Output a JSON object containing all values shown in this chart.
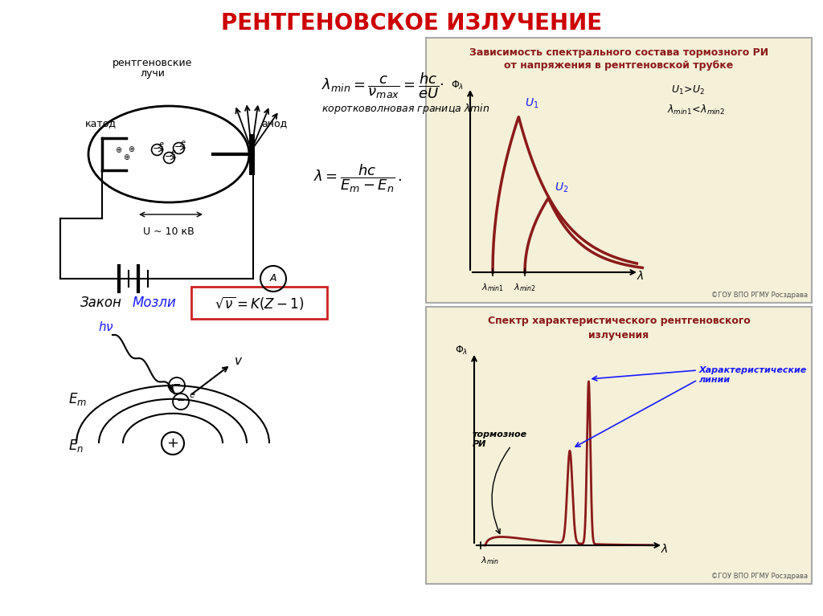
{
  "title": "РЕНТГЕНОВСКОЕ ИЗЛУЧЕНИЕ",
  "title_color": "#cc0000",
  "bg_color": "#ffffff",
  "panel_bg": "#f5f0d8",
  "curve_color": "#8b1a1a",
  "dark_red": "#8b1a1a",
  "blue_label": "#1a1aff",
  "panel1_title_line1": "Зависимость спектрального состава тормозного РИ",
  "panel1_title_line2": "от напряжения в рентгеновской трубке",
  "panel2_title_line1": "Спектр характеристического рентгеновского",
  "panel2_title_line2": "излучения",
  "copyright": "©ГОУ ВПО РГМУ Росздрава"
}
